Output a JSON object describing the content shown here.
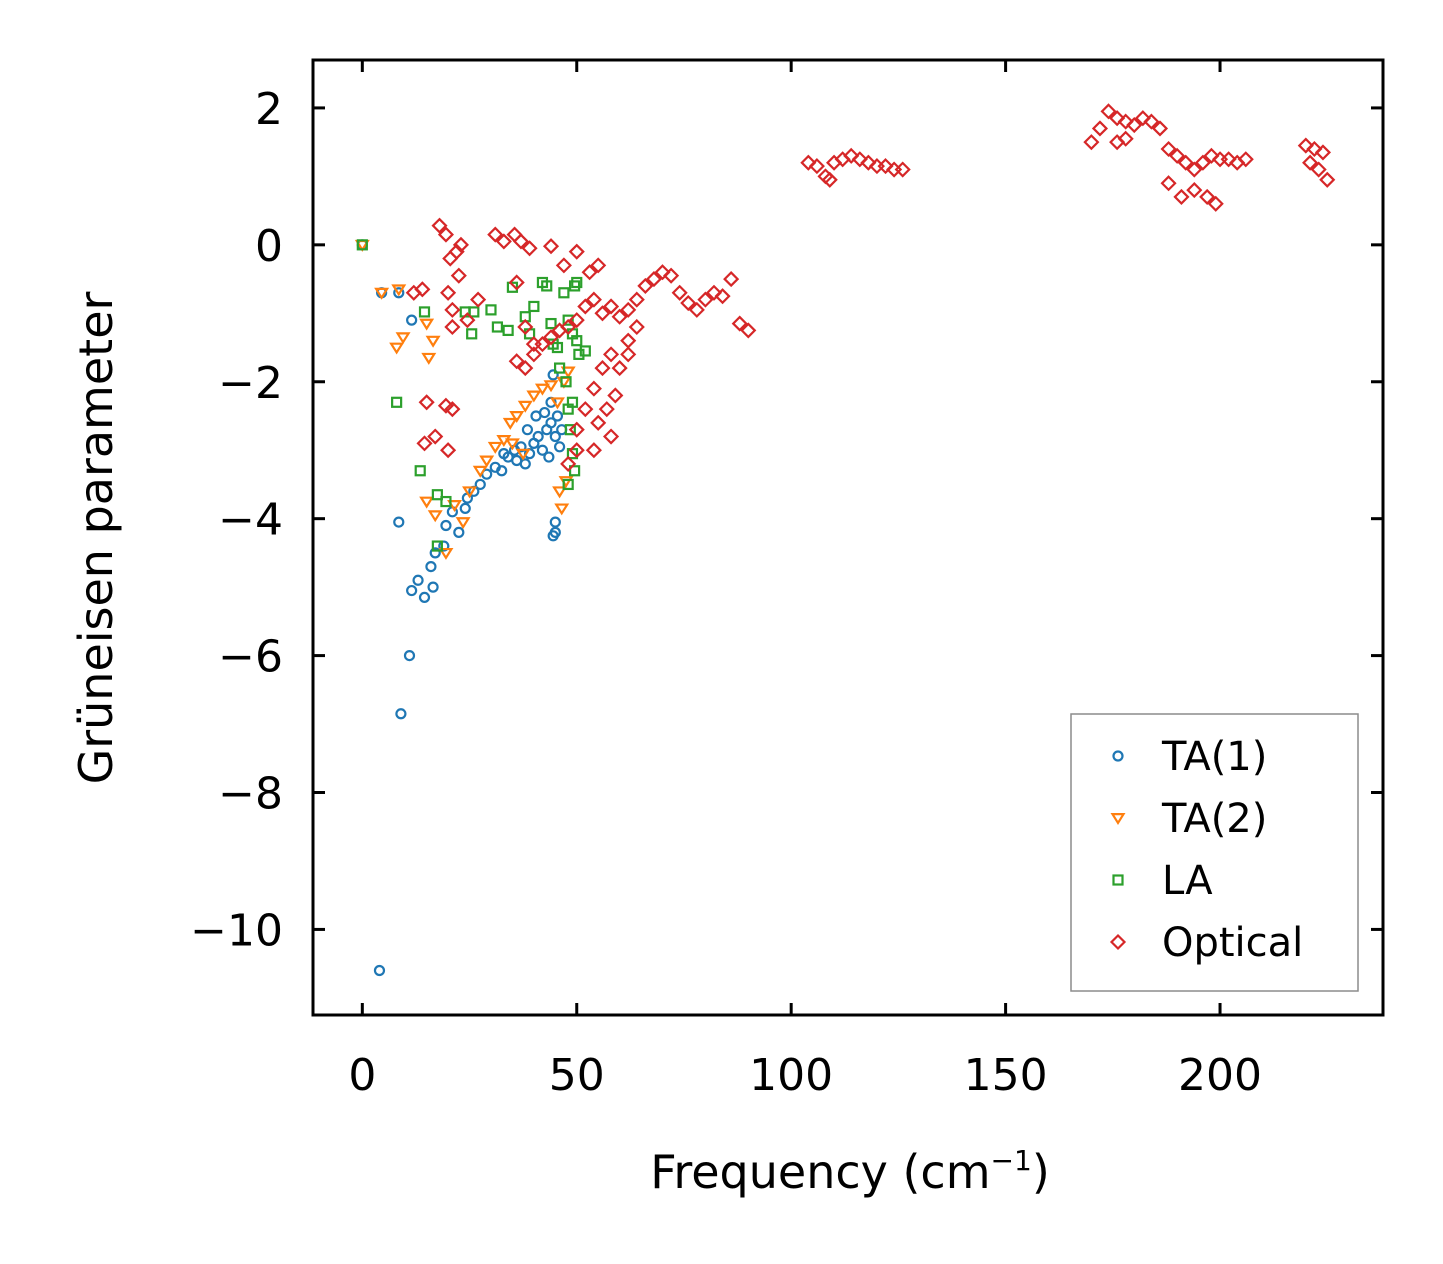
{
  "chart_data": {
    "type": "scatter",
    "title": "",
    "xlabel": "Frequency (cm",
    "xlabel_sup": "−1",
    "xlabel_close": ")",
    "ylabel": "Grüneisen parameter",
    "xlim": [
      -11.5,
      238
    ],
    "ylim": [
      -11.25,
      2.7
    ],
    "xticks": [
      0,
      50,
      100,
      150,
      200
    ],
    "xtick_labels": [
      "0",
      "50",
      "100",
      "150",
      "200"
    ],
    "yticks": [
      2,
      0,
      -2,
      -4,
      -6,
      -8,
      -10
    ],
    "ytick_labels": [
      "2",
      "0",
      "−2",
      "−4",
      "−6",
      "−8",
      "−10"
    ],
    "grid": false,
    "legend_position": "lower-right",
    "series": [
      {
        "name": "TA(1)",
        "color": "#1f77b4",
        "marker": "circle",
        "points": [
          [
            0,
            0
          ],
          [
            4.5,
            -0.7
          ],
          [
            8.5,
            -0.7
          ],
          [
            11.5,
            -1.1
          ],
          [
            4,
            -10.6
          ],
          [
            9,
            -6.85
          ],
          [
            11,
            -6.0
          ],
          [
            8.5,
            -4.05
          ],
          [
            11.5,
            -5.05
          ],
          [
            13,
            -4.9
          ],
          [
            14.5,
            -5.15
          ],
          [
            16.5,
            -5.0
          ],
          [
            16,
            -4.7
          ],
          [
            17,
            -4.5
          ],
          [
            19,
            -4.4
          ],
          [
            19.5,
            -4.1
          ],
          [
            21,
            -3.9
          ],
          [
            22.5,
            -4.2
          ],
          [
            24,
            -3.85
          ],
          [
            24.5,
            -3.7
          ],
          [
            26,
            -3.6
          ],
          [
            27.5,
            -3.5
          ],
          [
            29,
            -3.35
          ],
          [
            31,
            -3.25
          ],
          [
            32.5,
            -3.3
          ],
          [
            34,
            -3.1
          ],
          [
            35.5,
            -3.0
          ],
          [
            37,
            -2.95
          ],
          [
            38,
            -3.2
          ],
          [
            39,
            -3.05
          ],
          [
            40,
            -2.9
          ],
          [
            41,
            -2.8
          ],
          [
            42,
            -3.0
          ],
          [
            43,
            -2.7
          ],
          [
            44,
            -2.6
          ],
          [
            45,
            -2.8
          ],
          [
            46,
            -2.95
          ],
          [
            38.5,
            -2.7
          ],
          [
            40.5,
            -2.5
          ],
          [
            42.5,
            -2.45
          ],
          [
            44,
            -2.3
          ],
          [
            45.5,
            -2.5
          ],
          [
            46.5,
            -2.7
          ],
          [
            43.5,
            -3.1
          ],
          [
            44.5,
            -1.9
          ],
          [
            45,
            -4.05
          ],
          [
            45,
            -4.2
          ],
          [
            44.5,
            -4.25
          ],
          [
            36,
            -3.15
          ],
          [
            33,
            -3.05
          ]
        ]
      },
      {
        "name": "TA(2)",
        "color": "#ff7f0e",
        "marker": "triangle-down",
        "points": [
          [
            0,
            0
          ],
          [
            4.5,
            -0.7
          ],
          [
            8.5,
            -0.65
          ],
          [
            8,
            -1.5
          ],
          [
            9.5,
            -1.35
          ],
          [
            15,
            -1.15
          ],
          [
            16.5,
            -1.4
          ],
          [
            15.5,
            -1.65
          ],
          [
            15,
            -3.75
          ],
          [
            17,
            -3.95
          ],
          [
            19.5,
            -4.5
          ],
          [
            21.5,
            -3.8
          ],
          [
            23.5,
            -4.05
          ],
          [
            25,
            -3.6
          ],
          [
            27.5,
            -3.3
          ],
          [
            29,
            -3.15
          ],
          [
            31,
            -2.95
          ],
          [
            33,
            -2.85
          ],
          [
            34.5,
            -2.6
          ],
          [
            36,
            -2.5
          ],
          [
            38,
            -2.35
          ],
          [
            40,
            -2.2
          ],
          [
            42,
            -2.1
          ],
          [
            44,
            -2.05
          ],
          [
            45.5,
            -2.3
          ],
          [
            47,
            -2.0
          ],
          [
            48,
            -1.85
          ],
          [
            46,
            -3.6
          ],
          [
            46.5,
            -3.85
          ],
          [
            47.5,
            -3.45
          ],
          [
            35,
            -2.9
          ],
          [
            37.5,
            -3.05
          ]
        ]
      },
      {
        "name": "LA",
        "color": "#2ca02c",
        "marker": "square",
        "points": [
          [
            0,
            0
          ],
          [
            8,
            -2.3
          ],
          [
            13.5,
            -3.3
          ],
          [
            17.5,
            -3.65
          ],
          [
            17.5,
            -4.4
          ],
          [
            19.5,
            -3.75
          ],
          [
            14.5,
            -0.98
          ],
          [
            24,
            -0.98
          ],
          [
            25.5,
            -1.3
          ],
          [
            26,
            -0.98
          ],
          [
            30,
            -0.95
          ],
          [
            31.5,
            -1.2
          ],
          [
            34,
            -1.25
          ],
          [
            35,
            -0.62
          ],
          [
            38,
            -1.05
          ],
          [
            39,
            -1.3
          ],
          [
            40,
            -0.9
          ],
          [
            42,
            -0.55
          ],
          [
            43,
            -0.6
          ],
          [
            44,
            -1.15
          ],
          [
            44.5,
            -1.45
          ],
          [
            45.5,
            -1.5
          ],
          [
            47,
            -0.7
          ],
          [
            48,
            -1.1
          ],
          [
            49,
            -1.3
          ],
          [
            50,
            -1.4
          ],
          [
            50.5,
            -1.6
          ],
          [
            52,
            -1.55
          ],
          [
            47.5,
            -2.0
          ],
          [
            48,
            -2.4
          ],
          [
            48.5,
            -2.7
          ],
          [
            49,
            -3.05
          ],
          [
            49.5,
            -3.3
          ],
          [
            48,
            -3.5
          ],
          [
            49,
            -2.3
          ],
          [
            49.5,
            -0.6
          ],
          [
            50,
            -0.55
          ],
          [
            46,
            -1.8
          ]
        ]
      },
      {
        "name": "Optical",
        "color": "#d62728",
        "marker": "diamond",
        "points": [
          [
            18,
            0.28
          ],
          [
            19.5,
            0.15
          ],
          [
            20.5,
            -0.2
          ],
          [
            22,
            -0.1
          ],
          [
            22.5,
            -0.45
          ],
          [
            23,
            0.0
          ],
          [
            20,
            -0.7
          ],
          [
            21,
            -0.95
          ],
          [
            12,
            -0.7
          ],
          [
            14,
            -0.65
          ],
          [
            21,
            -1.2
          ],
          [
            24.5,
            -1.1
          ],
          [
            27,
            -0.8
          ],
          [
            31,
            0.15
          ],
          [
            33,
            0.05
          ],
          [
            35.5,
            0.15
          ],
          [
            37,
            0.05
          ],
          [
            39,
            -0.05
          ],
          [
            44,
            -0.02
          ],
          [
            47,
            -0.3
          ],
          [
            50,
            -0.1
          ],
          [
            15,
            -2.3
          ],
          [
            19.5,
            -2.35
          ],
          [
            21,
            -2.4
          ],
          [
            14.5,
            -2.9
          ],
          [
            17,
            -2.8
          ],
          [
            20,
            -3.0
          ],
          [
            36,
            -0.55
          ],
          [
            38,
            -1.2
          ],
          [
            40,
            -1.45
          ],
          [
            36,
            -1.7
          ],
          [
            38,
            -1.8
          ],
          [
            40,
            -1.6
          ],
          [
            42,
            -1.45
          ],
          [
            44,
            -1.35
          ],
          [
            46,
            -1.25
          ],
          [
            48,
            -1.2
          ],
          [
            50,
            -1.1
          ],
          [
            52,
            -0.9
          ],
          [
            54,
            -0.8
          ],
          [
            56,
            -1.0
          ],
          [
            58,
            -0.9
          ],
          [
            60,
            -1.05
          ],
          [
            62,
            -0.95
          ],
          [
            64,
            -0.8
          ],
          [
            66,
            -0.6
          ],
          [
            68,
            -0.5
          ],
          [
            70,
            -0.4
          ],
          [
            72,
            -0.45
          ],
          [
            74,
            -0.7
          ],
          [
            76,
            -0.85
          ],
          [
            78,
            -0.95
          ],
          [
            80,
            -0.8
          ],
          [
            82,
            -0.7
          ],
          [
            84,
            -0.75
          ],
          [
            86,
            -0.5
          ],
          [
            88,
            -1.15
          ],
          [
            90,
            -1.25
          ],
          [
            62,
            -1.4
          ],
          [
            64,
            -1.2
          ],
          [
            58,
            -1.6
          ],
          [
            56,
            -1.8
          ],
          [
            54,
            -2.1
          ],
          [
            52,
            -2.4
          ],
          [
            50,
            -2.7
          ],
          [
            55,
            -2.6
          ],
          [
            57,
            -2.4
          ],
          [
            59,
            -2.2
          ],
          [
            58,
            -2.8
          ],
          [
            54,
            -3.0
          ],
          [
            60,
            -1.8
          ],
          [
            62,
            -1.6
          ],
          [
            53,
            -0.4
          ],
          [
            55,
            -0.3
          ],
          [
            48,
            -3.2
          ],
          [
            50,
            -3.0
          ],
          [
            104,
            1.2
          ],
          [
            106,
            1.15
          ],
          [
            108,
            1.0
          ],
          [
            110,
            1.2
          ],
          [
            112,
            1.25
          ],
          [
            114,
            1.3
          ],
          [
            116,
            1.25
          ],
          [
            118,
            1.2
          ],
          [
            120,
            1.15
          ],
          [
            122,
            1.15
          ],
          [
            124,
            1.1
          ],
          [
            126,
            1.1
          ],
          [
            109,
            0.95
          ],
          [
            170,
            1.5
          ],
          [
            172,
            1.7
          ],
          [
            174,
            1.95
          ],
          [
            176,
            1.85
          ],
          [
            178,
            1.8
          ],
          [
            180,
            1.75
          ],
          [
            182,
            1.85
          ],
          [
            184,
            1.8
          ],
          [
            186,
            1.7
          ],
          [
            188,
            1.4
          ],
          [
            190,
            1.3
          ],
          [
            192,
            1.2
          ],
          [
            194,
            1.1
          ],
          [
            196,
            1.2
          ],
          [
            198,
            1.3
          ],
          [
            200,
            1.25
          ],
          [
            202,
            1.25
          ],
          [
            204,
            1.2
          ],
          [
            206,
            1.25
          ],
          [
            191,
            0.7
          ],
          [
            194,
            0.8
          ],
          [
            197,
            0.7
          ],
          [
            199,
            0.6
          ],
          [
            188,
            0.9
          ],
          [
            176,
            1.5
          ],
          [
            178,
            1.55
          ],
          [
            220,
            1.45
          ],
          [
            222,
            1.4
          ],
          [
            224,
            1.35
          ],
          [
            223,
            1.1
          ],
          [
            225,
            0.95
          ],
          [
            221,
            1.2
          ]
        ]
      }
    ]
  }
}
